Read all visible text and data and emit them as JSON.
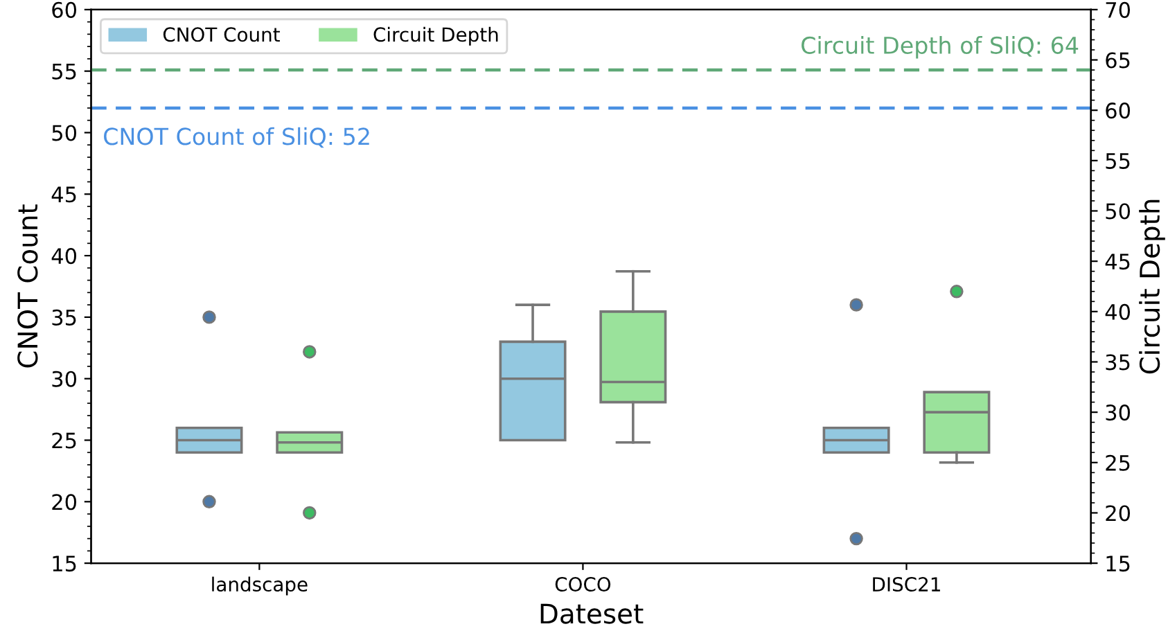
{
  "chart_data": {
    "type": "box",
    "xlabel": "Dateset",
    "ylabel": "CNOT Count",
    "y2label": "Circuit Depth",
    "categories": [
      "landscape",
      "COCO",
      "DISC21"
    ],
    "ylim": [
      15,
      60
    ],
    "yticks": [
      15,
      20,
      25,
      30,
      35,
      40,
      45,
      50,
      55,
      60
    ],
    "y2lim": [
      15,
      70
    ],
    "y2ticks": [
      15,
      20,
      25,
      30,
      35,
      40,
      45,
      50,
      55,
      60,
      65,
      70
    ],
    "series": [
      {
        "name": "CNOT Count",
        "color": "#93c8e0",
        "axis": "y",
        "boxes": [
          {
            "low": 24,
            "q1": 24,
            "median": 25,
            "q3": 26,
            "high": 26,
            "outliers": [
              35,
              20
            ]
          },
          {
            "low": 25,
            "q1": 25,
            "median": 30,
            "q3": 33,
            "high": 36
          },
          {
            "low": 24,
            "q1": 24,
            "median": 25,
            "q3": 26,
            "high": 26,
            "outliers": [
              36,
              17
            ]
          }
        ]
      },
      {
        "name": "Circuit Depth",
        "color": "#9ae29b",
        "axis": "y2",
        "boxes": [
          {
            "low": 26,
            "q1": 26,
            "median": 27,
            "q3": 28,
            "high": 28,
            "outliers": [
              36,
              20
            ]
          },
          {
            "low": 27,
            "q1": 31,
            "median": 33,
            "q3": 40,
            "high": 44
          },
          {
            "low": 25,
            "q1": 26,
            "median": 30,
            "q3": 32,
            "high": 32,
            "outliers": [
              42
            ]
          }
        ]
      }
    ],
    "ref_lines": [
      {
        "axis": "y",
        "value": 52,
        "label": "CNOT Count of SliQ: 52",
        "color": "#4a90e2",
        "line_style": "dashed"
      },
      {
        "axis": "y2",
        "value": 64,
        "label": "Circuit Depth of SliQ: 64",
        "color": "#5fa877",
        "line_style": "dashed"
      }
    ],
    "legend": "top left"
  }
}
